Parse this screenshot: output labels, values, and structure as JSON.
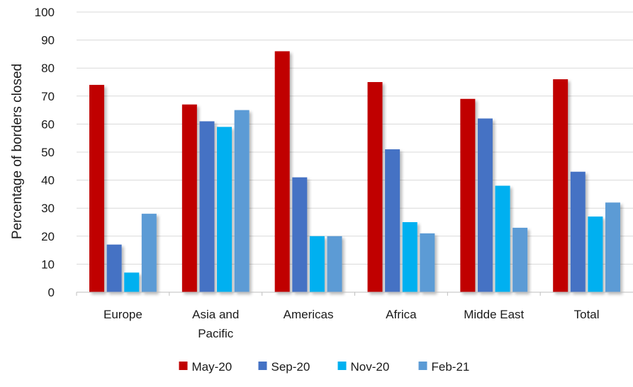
{
  "chart_data": {
    "type": "bar",
    "title": "",
    "xlabel": "",
    "ylabel": "Percentage of borders closed",
    "ylim": [
      0,
      100
    ],
    "yticks": [
      0,
      10,
      20,
      30,
      40,
      50,
      60,
      70,
      80,
      90,
      100
    ],
    "grid": true,
    "legend_position": "bottom",
    "categories": [
      [
        "Europe"
      ],
      [
        "Asia and",
        "Pacific"
      ],
      [
        "Americas"
      ],
      [
        "Africa"
      ],
      [
        "Midde East"
      ],
      [
        "Total"
      ]
    ],
    "series": [
      {
        "name": "May-20",
        "color": "#C00000",
        "values": [
          74,
          67,
          86,
          75,
          69,
          76
        ]
      },
      {
        "name": "Sep-20",
        "color": "#4472C4",
        "values": [
          17,
          61,
          41,
          51,
          62,
          43
        ]
      },
      {
        "name": "Nov-20",
        "color": "#00B0F0",
        "values": [
          7,
          59,
          20,
          25,
          38,
          27
        ]
      },
      {
        "name": "Feb-21",
        "color": "#5B9BD5",
        "values": [
          28,
          65,
          20,
          21,
          23,
          32
        ]
      }
    ]
  }
}
